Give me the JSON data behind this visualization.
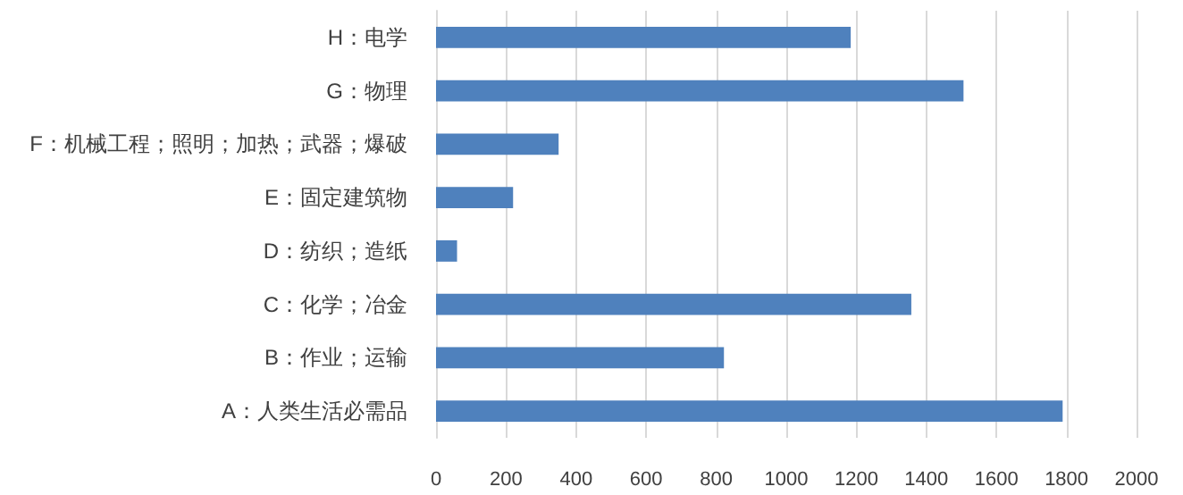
{
  "chart_data": {
    "type": "bar",
    "orientation": "horizontal",
    "categories": [
      "H：电学",
      "G：物理",
      "F：机械工程；照明；加热；武器；爆破",
      "E：固定建筑物",
      "D：纺织；造纸",
      "C：化学；冶金",
      "B：作业；运输",
      "A：人类生活必需品"
    ],
    "values": [
      1184,
      1506,
      350,
      220,
      60,
      1357,
      822,
      1789
    ],
    "color": "#4f81bd",
    "xlim": [
      0,
      2000
    ],
    "xticks": [
      0,
      200,
      400,
      600,
      800,
      1000,
      1200,
      1400,
      1600,
      1800,
      2000
    ],
    "grid": "x"
  }
}
